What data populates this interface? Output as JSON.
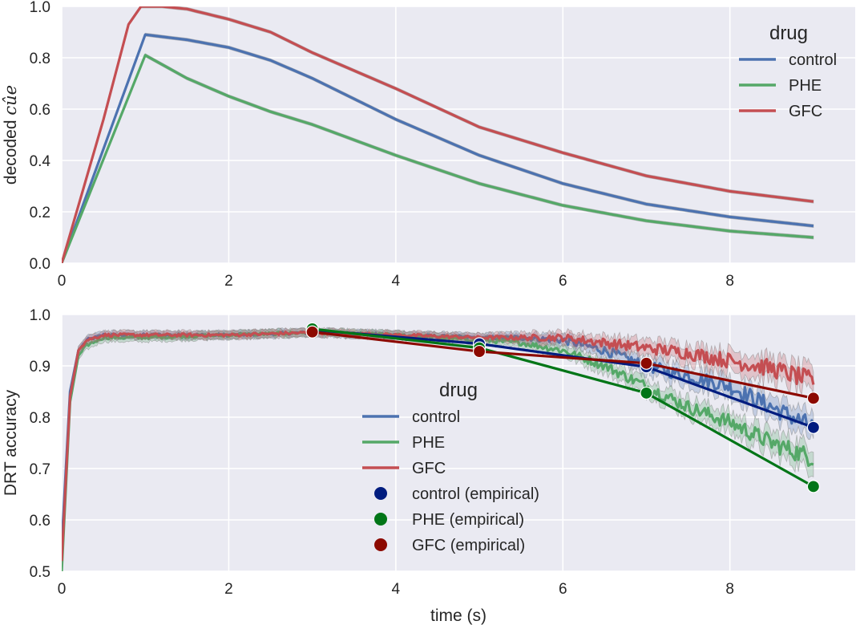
{
  "chart_data": [
    {
      "type": "line",
      "title": "",
      "xlabel": "",
      "ylabel": "decoded",
      "ylabel_math": "cûe",
      "xlim": [
        0,
        9.5
      ],
      "ylim": [
        0,
        1.0
      ],
      "x_ticks": [
        "0",
        "2",
        "4",
        "6",
        "8"
      ],
      "y_ticks": [
        "0.0",
        "0.2",
        "0.4",
        "0.6",
        "0.8",
        "1.0"
      ],
      "grid": true,
      "legend": {
        "title": "drug",
        "placement": "top-right"
      },
      "series": [
        {
          "name": "control",
          "color": "#4c72b0",
          "x": [
            0,
            1,
            1.5,
            2,
            2.5,
            3,
            4,
            5,
            6,
            7,
            8,
            9
          ],
          "y": [
            0,
            0.89,
            0.87,
            0.84,
            0.79,
            0.72,
            0.56,
            0.42,
            0.31,
            0.23,
            0.18,
            0.145
          ]
        },
        {
          "name": "PHE",
          "color": "#55a868",
          "x": [
            0,
            1,
            1.5,
            2,
            2.5,
            3,
            4,
            5,
            6,
            7,
            8,
            9
          ],
          "y": [
            0,
            0.81,
            0.72,
            0.65,
            0.59,
            0.54,
            0.42,
            0.31,
            0.225,
            0.165,
            0.125,
            0.1
          ]
        },
        {
          "name": "GFC",
          "color": "#c44e52",
          "x": [
            0,
            0.5,
            0.8,
            0.95,
            1.2,
            1.5,
            2,
            2.5,
            3,
            4,
            5,
            6,
            7,
            8,
            9
          ],
          "y": [
            0,
            0.56,
            0.93,
            1.0,
            1.0,
            0.99,
            0.95,
            0.9,
            0.82,
            0.68,
            0.53,
            0.43,
            0.34,
            0.28,
            0.24
          ]
        }
      ]
    },
    {
      "type": "line",
      "title": "",
      "xlabel": "time (s)",
      "ylabel": "DRT accuracy",
      "xlim": [
        0,
        9.5
      ],
      "ylim": [
        0.5,
        1.0
      ],
      "x_ticks": [
        "0",
        "2",
        "4",
        "6",
        "8"
      ],
      "y_ticks": [
        "0.5",
        "0.6",
        "0.7",
        "0.8",
        "0.9",
        "1.0"
      ],
      "grid": true,
      "legend": {
        "title": "drug",
        "placement": "center"
      },
      "series": [
        {
          "name": "control",
          "color": "#4c72b0",
          "x": [
            0,
            0.1,
            0.2,
            0.3,
            0.5,
            1,
            2,
            3,
            4,
            5,
            5.5,
            6,
            6.5,
            7,
            7.5,
            8,
            8.5,
            9
          ],
          "y": [
            0.55,
            0.85,
            0.93,
            0.95,
            0.96,
            0.96,
            0.96,
            0.965,
            0.96,
            0.955,
            0.955,
            0.95,
            0.93,
            0.9,
            0.88,
            0.86,
            0.82,
            0.78
          ]
        },
        {
          "name": "PHE",
          "color": "#55a868",
          "x": [
            0,
            0.1,
            0.2,
            0.3,
            0.5,
            1,
            2,
            3,
            4,
            5,
            5.5,
            6,
            6.5,
            7,
            7.5,
            8,
            8.5,
            9
          ],
          "y": [
            0.5,
            0.83,
            0.92,
            0.94,
            0.955,
            0.955,
            0.96,
            0.965,
            0.96,
            0.95,
            0.945,
            0.93,
            0.9,
            0.86,
            0.82,
            0.79,
            0.75,
            0.72
          ]
        },
        {
          "name": "GFC",
          "color": "#c44e52",
          "x": [
            0,
            0.1,
            0.2,
            0.3,
            0.5,
            1,
            2,
            3,
            4,
            5,
            5.5,
            6,
            6.5,
            7,
            7.5,
            8,
            8.5,
            9
          ],
          "y": [
            0.52,
            0.84,
            0.93,
            0.95,
            0.96,
            0.96,
            0.96,
            0.965,
            0.96,
            0.955,
            0.955,
            0.955,
            0.945,
            0.935,
            0.925,
            0.91,
            0.895,
            0.87
          ]
        },
        {
          "name": "control (empirical)",
          "color": "#001c7f",
          "x": [
            3,
            5,
            7,
            9
          ],
          "y": [
            0.97,
            0.943,
            0.898,
            0.78
          ]
        },
        {
          "name": "PHE (empirical)",
          "color": "#017517",
          "x": [
            3,
            5,
            7,
            9
          ],
          "y": [
            0.972,
            0.935,
            0.847,
            0.665
          ]
        },
        {
          "name": "GFC (empirical)",
          "color": "#8c0900",
          "x": [
            3,
            5,
            7,
            9
          ],
          "y": [
            0.966,
            0.928,
            0.905,
            0.837
          ]
        }
      ]
    }
  ]
}
